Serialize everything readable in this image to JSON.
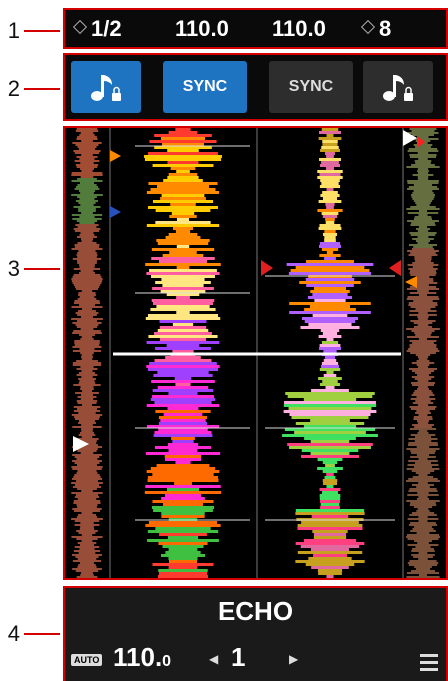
{
  "callouts": [
    "1",
    "2",
    "3",
    "4"
  ],
  "status_bar": {
    "left_beat": "1/2",
    "left_bpm": "110.0",
    "right_bpm": "110.0",
    "right_beat": "8"
  },
  "buttons": {
    "deck1_keylock_icon": "music-note-lock-icon",
    "deck1_sync_label": "SYNC",
    "deck2_sync_label": "SYNC",
    "deck2_keylock_icon": "music-note-lock-icon"
  },
  "fx_panel": {
    "effect_name": "ECHO",
    "auto_badge": "AUTO",
    "bpm_main": "110.",
    "bpm_decimal": "0",
    "beat_value": "1",
    "menu_icon": "hamburger-menu-icon"
  },
  "colors": {
    "accent_blue": "#1e74c0",
    "callout_red": "#d40000"
  }
}
